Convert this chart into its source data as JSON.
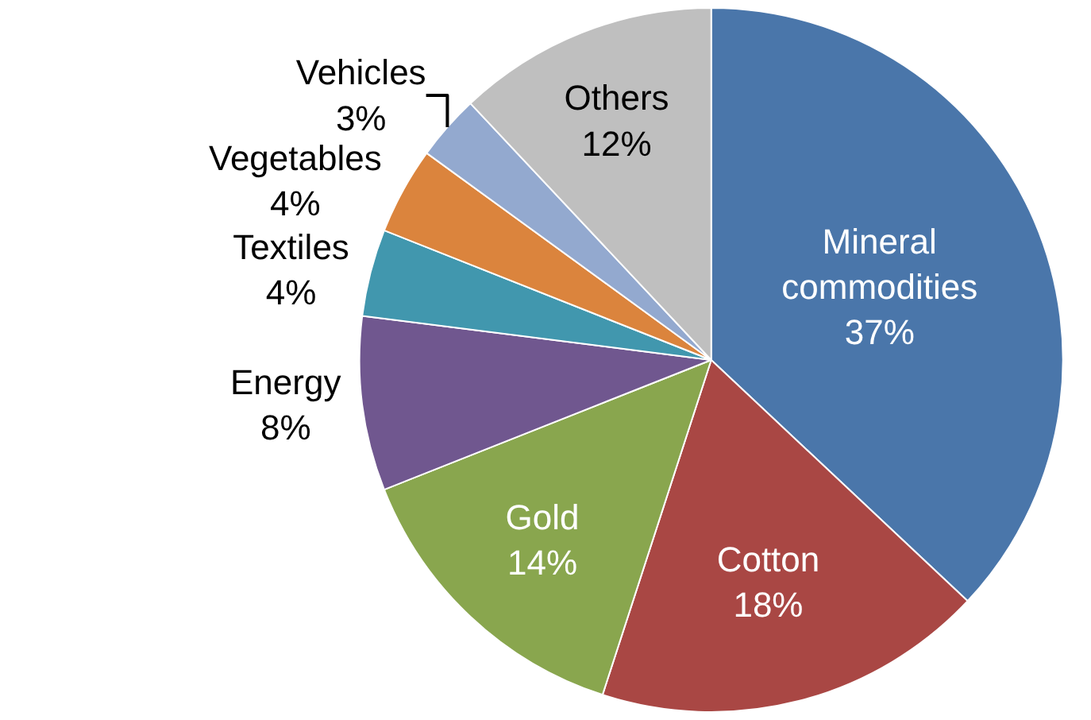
{
  "chart_data": {
    "type": "pie",
    "categories": [
      "Mineral commodities",
      "Cotton",
      "Gold",
      "Energy",
      "Textiles",
      "Vegetables",
      "Vehicles",
      "Others"
    ],
    "values": [
      37,
      18,
      14,
      8,
      4,
      4,
      3,
      12
    ],
    "value_labels": [
      "37%",
      "18%",
      "14%",
      "8%",
      "4%",
      "4%",
      "3%",
      "12%"
    ],
    "colors": [
      "#4a76aa",
      "#a94744",
      "#89a64e",
      "#70578f",
      "#4197ae",
      "#db843d",
      "#93a9cf",
      "#bfbfbf"
    ],
    "legend": false
  }
}
